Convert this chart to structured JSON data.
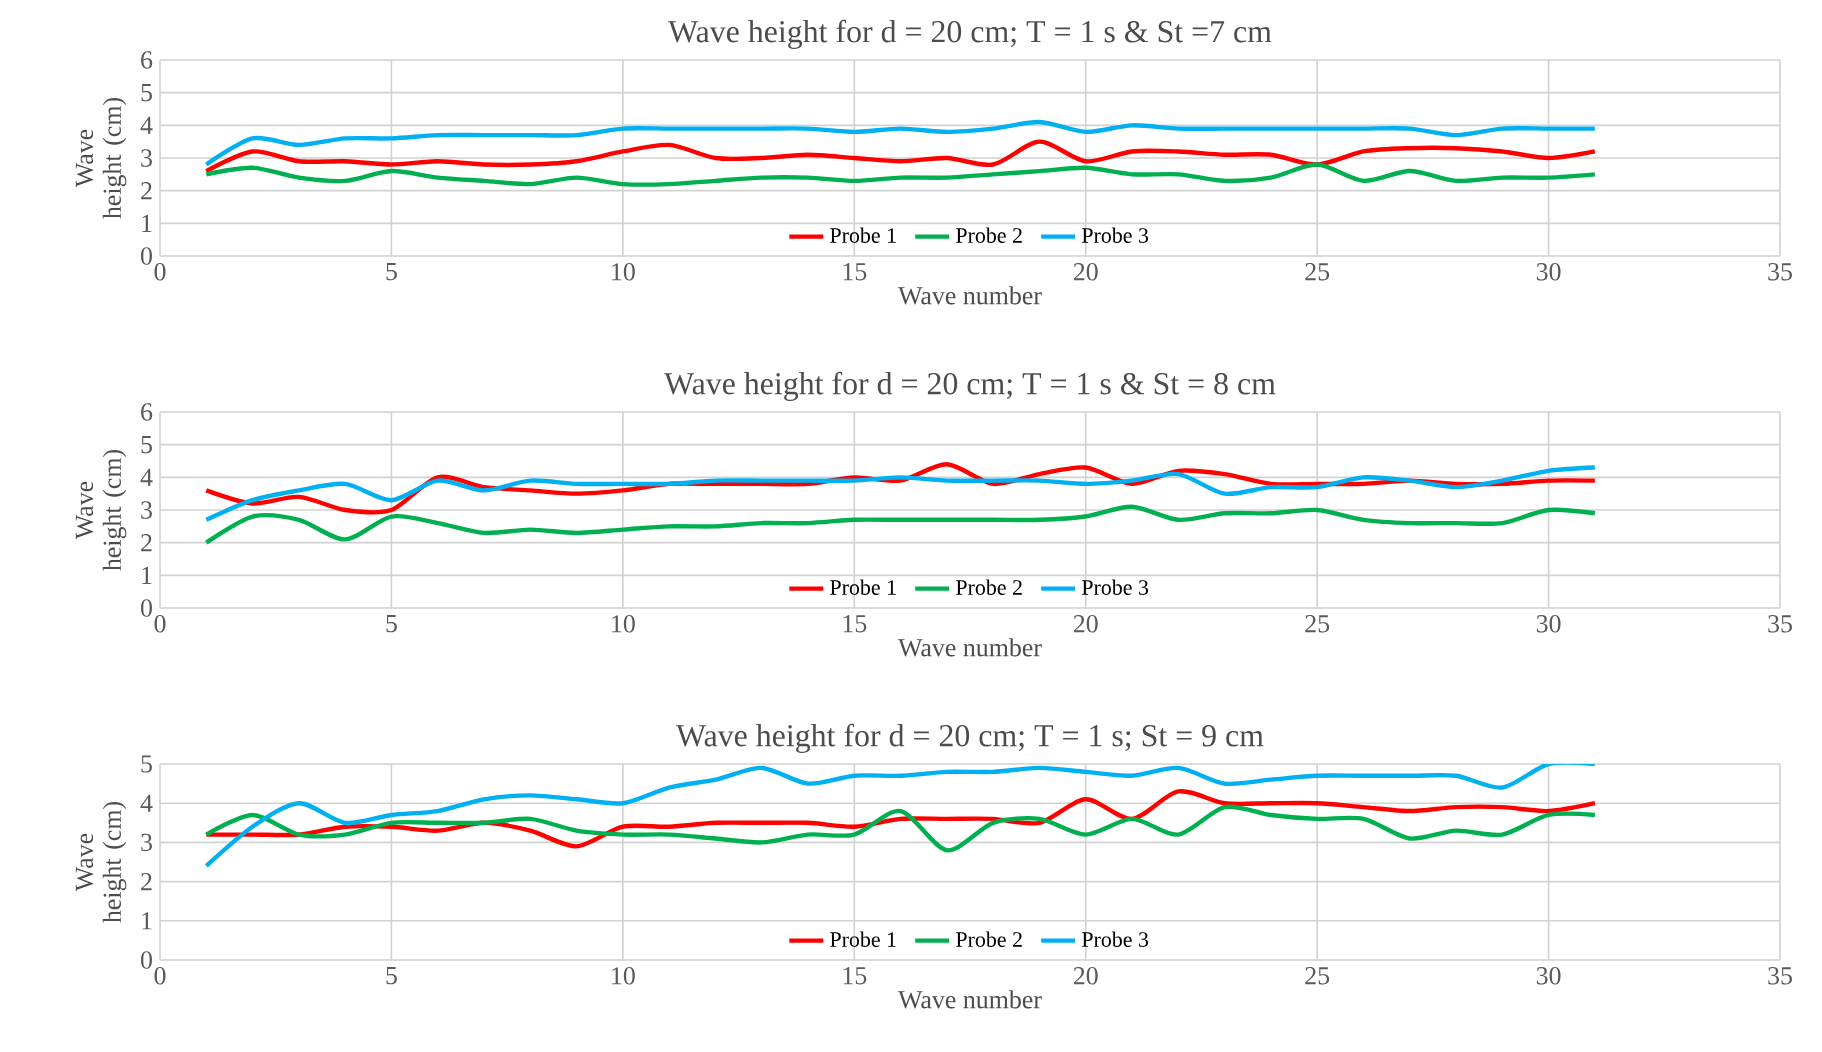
{
  "chart_data": [
    {
      "type": "line",
      "title": "Wave height for d = 20 cm; T = 1 s & St =7 cm",
      "xlabel": "Wave number",
      "ylabel": "Wave height (cm)",
      "x": [
        1,
        2,
        3,
        4,
        5,
        6,
        7,
        8,
        9,
        10,
        11,
        12,
        13,
        14,
        15,
        16,
        17,
        18,
        19,
        20,
        21,
        22,
        23,
        24,
        25,
        26,
        27,
        28,
        29,
        30,
        31
      ],
      "series": [
        {
          "name": "Probe 1",
          "color": "#ff0000",
          "values": [
            2.6,
            3.2,
            2.9,
            2.9,
            2.8,
            2.9,
            2.8,
            2.8,
            2.9,
            3.2,
            3.4,
            3.0,
            3.0,
            3.1,
            3.0,
            2.9,
            3.0,
            2.8,
            3.5,
            2.9,
            3.2,
            3.2,
            3.1,
            3.1,
            2.8,
            3.2,
            3.3,
            3.3,
            3.2,
            3.0,
            3.2
          ]
        },
        {
          "name": "Probe 2",
          "color": "#00b050",
          "values": [
            2.5,
            2.7,
            2.4,
            2.3,
            2.6,
            2.4,
            2.3,
            2.2,
            2.4,
            2.2,
            2.2,
            2.3,
            2.4,
            2.4,
            2.3,
            2.4,
            2.4,
            2.5,
            2.6,
            2.7,
            2.5,
            2.5,
            2.3,
            2.4,
            2.8,
            2.3,
            2.6,
            2.3,
            2.4,
            2.4,
            2.5
          ]
        },
        {
          "name": "Probe 3",
          "color": "#00b0f0",
          "values": [
            2.8,
            3.6,
            3.4,
            3.6,
            3.6,
            3.7,
            3.7,
            3.7,
            3.7,
            3.9,
            3.9,
            3.9,
            3.9,
            3.9,
            3.8,
            3.9,
            3.8,
            3.9,
            4.1,
            3.8,
            4.0,
            3.9,
            3.9,
            3.9,
            3.9,
            3.9,
            3.9,
            3.7,
            3.9,
            3.9,
            3.9
          ]
        }
      ],
      "xlim": [
        0,
        35
      ],
      "xticks": [
        0,
        5,
        10,
        15,
        20,
        25,
        30,
        35
      ],
      "ylim": [
        0,
        6
      ],
      "yticks": [
        0,
        1,
        2,
        3,
        4,
        5,
        6
      ],
      "grid": true,
      "legend": "bottom"
    },
    {
      "type": "line",
      "title": "Wave height for d = 20 cm; T = 1 s & St = 8 cm",
      "xlabel": "Wave number",
      "ylabel": "Wave height (cm)",
      "x": [
        1,
        2,
        3,
        4,
        5,
        6,
        7,
        8,
        9,
        10,
        11,
        12,
        13,
        14,
        15,
        16,
        17,
        18,
        19,
        20,
        21,
        22,
        23,
        24,
        25,
        26,
        27,
        28,
        29,
        30,
        31
      ],
      "series": [
        {
          "name": "Probe 1",
          "color": "#ff0000",
          "values": [
            3.6,
            3.2,
            3.4,
            3.0,
            3.0,
            4.0,
            3.7,
            3.6,
            3.5,
            3.6,
            3.8,
            3.8,
            3.8,
            3.8,
            4.0,
            3.9,
            4.4,
            3.8,
            4.1,
            4.3,
            3.8,
            4.2,
            4.1,
            3.8,
            3.8,
            3.8,
            3.9,
            3.8,
            3.8,
            3.9,
            3.9
          ]
        },
        {
          "name": "Probe 2",
          "color": "#00b050",
          "values": [
            2.0,
            2.8,
            2.7,
            2.1,
            2.8,
            2.6,
            2.3,
            2.4,
            2.3,
            2.4,
            2.5,
            2.5,
            2.6,
            2.6,
            2.7,
            2.7,
            2.7,
            2.7,
            2.7,
            2.8,
            3.1,
            2.7,
            2.9,
            2.9,
            3.0,
            2.7,
            2.6,
            2.6,
            2.6,
            3.0,
            2.9
          ]
        },
        {
          "name": "Probe 3",
          "color": "#00b0f0",
          "values": [
            2.7,
            3.3,
            3.6,
            3.8,
            3.3,
            3.9,
            3.6,
            3.9,
            3.8,
            3.8,
            3.8,
            3.9,
            3.9,
            3.9,
            3.9,
            4.0,
            3.9,
            3.9,
            3.9,
            3.8,
            3.9,
            4.1,
            3.5,
            3.7,
            3.7,
            4.0,
            3.9,
            3.7,
            3.9,
            4.2,
            4.3
          ]
        }
      ],
      "xlim": [
        0,
        35
      ],
      "xticks": [
        0,
        5,
        10,
        15,
        20,
        25,
        30,
        35
      ],
      "ylim": [
        0,
        6
      ],
      "yticks": [
        0,
        1,
        2,
        3,
        4,
        5,
        6
      ],
      "grid": true,
      "legend": "bottom"
    },
    {
      "type": "line",
      "title": "Wave height for d = 20 cm; T = 1 s; St = 9 cm",
      "xlabel": "Wave number",
      "ylabel": "Wave height (cm)",
      "x": [
        1,
        2,
        3,
        4,
        5,
        6,
        7,
        8,
        9,
        10,
        11,
        12,
        13,
        14,
        15,
        16,
        17,
        18,
        19,
        20,
        21,
        22,
        23,
        24,
        25,
        26,
        27,
        28,
        29,
        30,
        31
      ],
      "series": [
        {
          "name": "Probe 1",
          "color": "#ff0000",
          "values": [
            3.2,
            3.2,
            3.2,
            3.4,
            3.4,
            3.3,
            3.5,
            3.3,
            2.9,
            3.4,
            3.4,
            3.5,
            3.5,
            3.5,
            3.4,
            3.6,
            3.6,
            3.6,
            3.5,
            4.1,
            3.6,
            4.3,
            4.0,
            4.0,
            4.0,
            3.9,
            3.8,
            3.9,
            3.9,
            3.8,
            4.0
          ]
        },
        {
          "name": "Probe 2",
          "color": "#00b050",
          "values": [
            3.2,
            3.7,
            3.2,
            3.2,
            3.5,
            3.5,
            3.5,
            3.6,
            3.3,
            3.2,
            3.2,
            3.1,
            3.0,
            3.2,
            3.2,
            3.8,
            2.8,
            3.5,
            3.6,
            3.2,
            3.6,
            3.2,
            3.9,
            3.7,
            3.6,
            3.6,
            3.1,
            3.3,
            3.2,
            3.7,
            3.7
          ]
        },
        {
          "name": "Probe 3",
          "color": "#00b0f0",
          "values": [
            2.4,
            3.4,
            4.0,
            3.5,
            3.7,
            3.8,
            4.1,
            4.2,
            4.1,
            4.0,
            4.4,
            4.6,
            4.9,
            4.5,
            4.7,
            4.7,
            4.8,
            4.8,
            4.9,
            4.8,
            4.7,
            4.9,
            4.5,
            4.6,
            4.7,
            4.7,
            4.7,
            4.7,
            4.4,
            5.0,
            5.0
          ]
        }
      ],
      "xlim": [
        0,
        35
      ],
      "xticks": [
        0,
        5,
        10,
        15,
        20,
        25,
        30,
        35
      ],
      "ylim": [
        0,
        5
      ],
      "yticks": [
        0,
        1,
        2,
        3,
        4,
        5
      ],
      "grid": true,
      "legend": "bottom"
    }
  ]
}
